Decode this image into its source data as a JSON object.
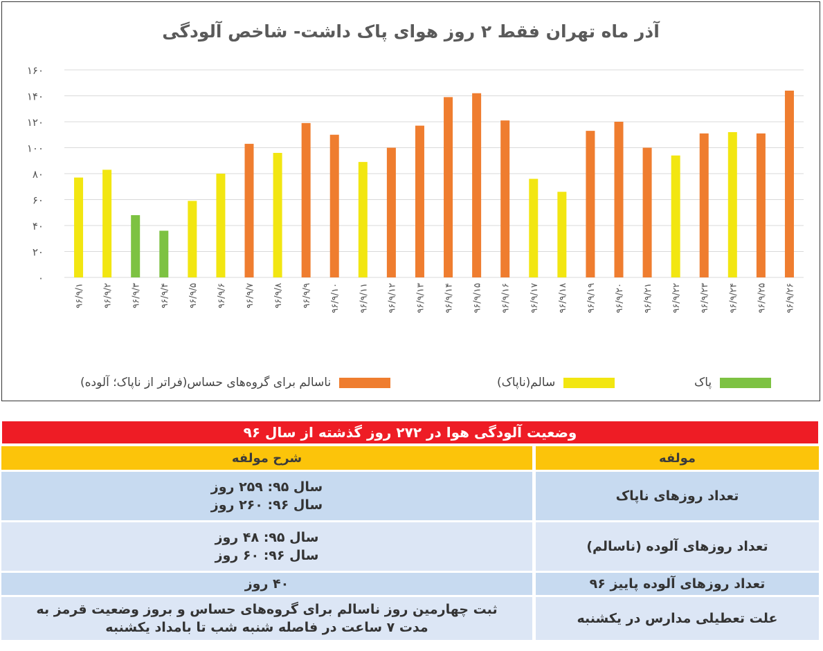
{
  "chart_data": {
    "type": "bar",
    "title": "آذر ماه تهران فقط ۲ روز هوای پاک داشت- شاخص آلودگی",
    "categories": [
      "۹۶/۹/۱",
      "۹۶/۹/۲",
      "۹۶/۹/۳",
      "۹۶/۹/۴",
      "۹۶/۹/۵",
      "۹۶/۹/۶",
      "۹۶/۹/۷",
      "۹۶/۹/۸",
      "۹۶/۹/۹",
      "۹۶/۹/۱۰",
      "۹۶/۹/۱۱",
      "۹۶/۹/۱۲",
      "۹۶/۹/۱۳",
      "۹۶/۹/۱۴",
      "۹۶/۹/۱۵",
      "۹۶/۹/۱۶",
      "۹۶/۹/۱۷",
      "۹۶/۹/۱۸",
      "۹۶/۹/۱۹",
      "۹۶/۹/۲۰",
      "۹۶/۹/۲۱",
      "۹۶/۹/۲۲",
      "۹۶/۹/۲۳",
      "۹۶/۹/۲۴",
      "۹۶/۹/۲۵",
      "۹۶/۹/۲۶"
    ],
    "values": [
      77,
      83,
      48,
      36,
      59,
      80,
      103,
      96,
      119,
      110,
      89,
      100,
      117,
      139,
      142,
      121,
      76,
      66,
      113,
      120,
      100,
      94,
      111,
      112,
      111,
      144
    ],
    "categories_class": [
      "sensitive",
      "clean",
      "unhealthy"
    ],
    "bar_class": [
      1,
      1,
      0,
      0,
      1,
      1,
      2,
      1,
      2,
      2,
      1,
      2,
      2,
      2,
      2,
      2,
      1,
      1,
      2,
      2,
      2,
      1,
      2,
      1,
      2,
      2
    ],
    "yticks": [
      "۰",
      "۲۰",
      "۴۰",
      "۶۰",
      "۸۰",
      "۱۰۰",
      "۱۲۰",
      "۱۴۰",
      "۱۶۰"
    ],
    "ylim": [
      0,
      160
    ],
    "grid": true,
    "legend_position": "bottom",
    "legend": [
      {
        "label": "پاک",
        "color": "#7dc242"
      },
      {
        "label": "سالم(ناپاک)",
        "color": "#f2e611"
      },
      {
        "label": "ناسالم برای گروه‌های حساس(فراتر از ناپاک؛ آلوده)",
        "color": "#ef7d2f"
      }
    ],
    "class_colors": [
      "#7dc242",
      "#f2e611",
      "#ef7d2f"
    ]
  },
  "table": {
    "title": "وضعیت آلودگی هوا در ۲۷۲ روز گذشته از سال ۹۶",
    "col_component": "مولفه",
    "col_description": "شرح مولفه",
    "rows": [
      {
        "component": "تعداد روزهای ناپاک",
        "desc_line1": "سال ۹۵: ۲۵۹ روز",
        "desc_line2": "سال ۹۶: ۲۶۰ روز"
      },
      {
        "component": "تعداد روزهای آلوده (ناسالم)",
        "desc_line1": "سال ۹۵: ۴۸ روز",
        "desc_line2": "سال ۹۶: ۶۰ روز"
      },
      {
        "component": "تعداد روزهای آلوده پاییز ۹۶",
        "desc_line1": "۴۰ روز",
        "desc_line2": ""
      },
      {
        "component": "علت تعطیلی مدارس در یکشنبه",
        "desc_line1": "ثبت چهارمین روز ناسالم برای گروه‌های حساس و بروز وضعیت قرمز به",
        "desc_line2": "مدت ۷ ساعت در فاصله شنبه شب تا بامداد یکشنبه"
      }
    ]
  }
}
